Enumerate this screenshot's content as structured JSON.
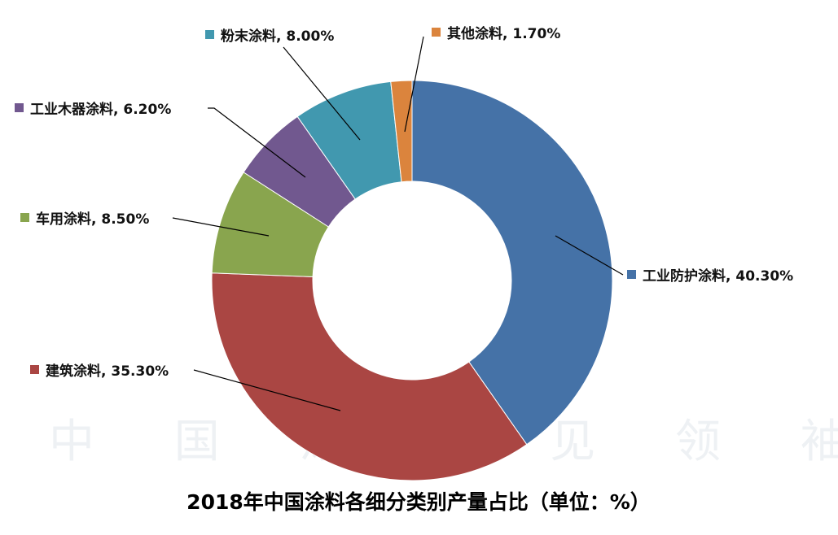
{
  "watermark": "中 国 涂 界 见 领 袖",
  "chart_data": {
    "type": "pie",
    "variant": "donut",
    "title": "2018年中国涂料各细分类别产量占比（单位：%）",
    "start_angle": "12 o'clock, clockwise",
    "slices": [
      {
        "label": "工业防护涂料",
        "value": 40.3,
        "text": "工业防护涂料, 40.30%",
        "color": "#4572A7"
      },
      {
        "label": "建筑涂料",
        "value": 35.3,
        "text": "建筑涂料, 35.30%",
        "color": "#AA4643"
      },
      {
        "label": "车用涂料",
        "value": 8.5,
        "text": "车用涂料, 8.50%",
        "color": "#89A54E"
      },
      {
        "label": "工业木器涂料",
        "value": 6.2,
        "text": "工业木器涂料, 6.20%",
        "color": "#71588F"
      },
      {
        "label": "粉末涂料",
        "value": 8.0,
        "text": "粉末涂料, 8.00%",
        "color": "#4198AF"
      },
      {
        "label": "其他涂料",
        "value": 1.7,
        "text": "其他涂料, 1.70%",
        "color": "#DB843D"
      }
    ]
  }
}
